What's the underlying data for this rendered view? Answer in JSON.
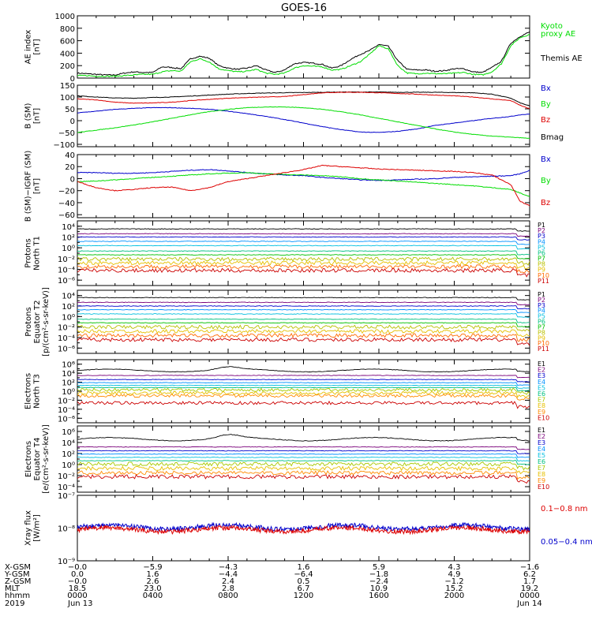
{
  "title": "GOES-16",
  "colors": {
    "black": "#000000",
    "green": "#00dd00",
    "blue": "#0000cc",
    "red": "#dd0000",
    "p": [
      "#000000",
      "#7a007a",
      "#0000cc",
      "#0090ff",
      "#00bfe0",
      "#00c080",
      "#00c000",
      "#b8c000",
      "#e6c000",
      "#ff6a00",
      "#cc0000"
    ],
    "e": [
      "#000000",
      "#7a007a",
      "#0000cc",
      "#0090ff",
      "#00bfe0",
      "#00c080",
      "#a8c800",
      "#e6c000",
      "#ff8c00",
      "#cc0000"
    ]
  },
  "chart_data": [
    {
      "type": "line",
      "id": "ae",
      "ylabel": [
        "AE index",
        "[nT]"
      ],
      "ylim": [
        0,
        1000
      ],
      "yticks": [
        "0",
        "200",
        "400",
        "600",
        "800",
        "1000"
      ],
      "ytick_values": [
        0,
        200,
        400,
        600,
        800,
        1000
      ],
      "legend": [
        {
          "name": "Kyoto",
          "color": "green"
        },
        {
          "name": "proxy AE",
          "color": "green"
        },
        {
          "name": "Themis AE",
          "color": "black"
        }
      ],
      "series": [
        {
          "name": "Themis AE",
          "color": "black",
          "x": [
            0,
            0.5,
            1,
            1.5,
            2,
            2.5,
            3,
            3.5,
            4,
            4.5,
            5,
            5.5,
            6,
            6.5,
            7,
            7.5,
            8,
            8.5,
            9,
            9.5,
            10,
            10.5,
            11,
            11.5,
            12,
            12.5,
            13,
            13.5,
            14,
            14.5,
            15,
            15.5,
            16,
            16.5,
            17,
            17.5,
            18,
            18.5,
            19,
            19.5,
            20,
            20.5,
            21,
            21.5,
            22,
            22.5,
            23,
            23.5,
            24
          ],
          "y": [
            80,
            70,
            60,
            50,
            50,
            80,
            100,
            90,
            90,
            180,
            170,
            150,
            310,
            350,
            320,
            200,
            160,
            140,
            160,
            200,
            130,
            90,
            130,
            230,
            250,
            240,
            220,
            160,
            200,
            300,
            380,
            440,
            540,
            510,
            280,
            140,
            130,
            130,
            110,
            120,
            150,
            150,
            100,
            90,
            170,
            270,
            560,
            670,
            740
          ]
        },
        {
          "name": "Kyoto proxy AE",
          "color": "green",
          "x": [
            0,
            0.5,
            1,
            1.5,
            2,
            2.5,
            3,
            3.5,
            4,
            4.5,
            5,
            5.5,
            6,
            6.5,
            7,
            7.5,
            8,
            8.5,
            9,
            9.5,
            10,
            10.5,
            11,
            11.5,
            12,
            12.5,
            13,
            13.5,
            14,
            14.5,
            15,
            15.5,
            16,
            16.5,
            17,
            17.5,
            18,
            18.5,
            19,
            19.5,
            20,
            20.5,
            21,
            21.5,
            22,
            22.5,
            23,
            23.5,
            24
          ],
          "y": [
            40,
            40,
            30,
            30,
            30,
            40,
            50,
            60,
            60,
            100,
            120,
            110,
            260,
            310,
            260,
            150,
            120,
            100,
            110,
            140,
            80,
            60,
            80,
            160,
            200,
            190,
            180,
            130,
            140,
            200,
            260,
            380,
            520,
            470,
            200,
            80,
            70,
            80,
            70,
            70,
            80,
            90,
            60,
            50,
            100,
            230,
            520,
            650,
            700
          ]
        }
      ]
    },
    {
      "type": "line",
      "id": "bsm",
      "ylabel": [
        "B (SM)",
        "[nT]"
      ],
      "ylim": [
        -110,
        150
      ],
      "yticks": [
        "−100",
        "−50",
        "0",
        "50",
        "100",
        "150"
      ],
      "ytick_values": [
        -100,
        -50,
        0,
        50,
        100,
        150
      ],
      "legend": [
        {
          "name": "Bx",
          "color": "blue"
        },
        {
          "name": "By",
          "color": "green"
        },
        {
          "name": "Bz",
          "color": "red"
        },
        {
          "name": "Bmag",
          "color": "black"
        }
      ],
      "series": [
        {
          "name": "Bmag",
          "color": "black",
          "x": [
            0,
            1,
            2,
            3,
            4,
            5,
            6,
            7,
            8,
            9,
            10,
            11,
            12,
            13,
            14,
            15,
            16,
            17,
            18,
            19,
            20,
            21,
            22,
            23,
            23.5,
            24
          ],
          "y": [
            105,
            100,
            96,
            95,
            98,
            100,
            104,
            108,
            112,
            115,
            117,
            118,
            119,
            120,
            121,
            121,
            121,
            120,
            120,
            120,
            119,
            118,
            112,
            95,
            75,
            62
          ]
        },
        {
          "name": "Bz",
          "color": "red",
          "x": [
            0,
            1,
            2,
            3,
            4,
            5,
            6,
            7,
            8,
            9,
            10,
            11,
            12,
            13,
            14,
            15,
            16,
            17,
            18,
            19,
            20,
            21,
            22,
            23,
            23.5,
            24
          ],
          "y": [
            92,
            88,
            78,
            74,
            75,
            78,
            85,
            90,
            95,
            98,
            100,
            102,
            110,
            118,
            120,
            120,
            118,
            115,
            112,
            108,
            105,
            100,
            92,
            85,
            65,
            50
          ]
        },
        {
          "name": "Bx",
          "color": "blue",
          "x": [
            0,
            1,
            2,
            3,
            4,
            5,
            6,
            7,
            8,
            9,
            10,
            11,
            12,
            13,
            14,
            15,
            16,
            17,
            18,
            19,
            20,
            21,
            22,
            23,
            23.5,
            24
          ],
          "y": [
            33,
            40,
            48,
            52,
            55,
            55,
            52,
            48,
            40,
            30,
            18,
            5,
            -10,
            -25,
            -38,
            -48,
            -50,
            -45,
            -35,
            -20,
            -10,
            0,
            10,
            18,
            25,
            28
          ]
        },
        {
          "name": "By",
          "color": "green",
          "x": [
            0,
            1,
            2,
            3,
            4,
            5,
            6,
            7,
            8,
            9,
            10,
            11,
            12,
            13,
            14,
            15,
            16,
            17,
            18,
            19,
            20,
            21,
            22,
            23,
            23.5,
            24
          ],
          "y": [
            -50,
            -40,
            -30,
            -18,
            -5,
            10,
            25,
            38,
            48,
            55,
            58,
            58,
            55,
            48,
            38,
            25,
            10,
            -5,
            -20,
            -35,
            -48,
            -58,
            -65,
            -70,
            -72,
            -75
          ]
        }
      ]
    },
    {
      "type": "line",
      "id": "bigrf",
      "ylabel": [
        "B (SM)−IGRF (SM)",
        "[nT]"
      ],
      "ylim": [
        -65,
        40
      ],
      "yticks": [
        "−60",
        "−40",
        "−20",
        "0",
        "20",
        "40"
      ],
      "ytick_values": [
        -60,
        -40,
        -20,
        0,
        20,
        40
      ],
      "legend": [
        {
          "name": "Bx",
          "color": "blue"
        },
        {
          "name": "By",
          "color": "green"
        },
        {
          "name": "Bz",
          "color": "red"
        }
      ],
      "series": [
        {
          "name": "Bx",
          "color": "blue",
          "x": [
            0,
            1,
            2,
            3,
            4,
            5,
            6,
            7,
            8,
            9,
            10,
            11,
            12,
            13,
            14,
            15,
            16,
            17,
            18,
            19,
            20,
            21,
            22,
            23,
            23.5,
            24
          ],
          "y": [
            10,
            10,
            9,
            9,
            10,
            12,
            14,
            15,
            13,
            10,
            8,
            6,
            5,
            2,
            0,
            -2,
            -3,
            -2,
            -1,
            0,
            2,
            3,
            4,
            5,
            8,
            14
          ]
        },
        {
          "name": "By",
          "color": "green",
          "x": [
            0,
            1,
            2,
            3,
            4,
            5,
            6,
            7,
            8,
            9,
            10,
            11,
            12,
            13,
            14,
            15,
            16,
            17,
            18,
            19,
            20,
            21,
            22,
            23,
            23.5,
            24
          ],
          "y": [
            -5,
            -4,
            -2,
            0,
            2,
            4,
            6,
            8,
            9,
            10,
            8,
            7,
            6,
            5,
            3,
            0,
            -2,
            -4,
            -6,
            -8,
            -10,
            -12,
            -15,
            -18,
            -24,
            -30
          ]
        },
        {
          "name": "Bz",
          "color": "red",
          "x": [
            0,
            1,
            2,
            3,
            4,
            5,
            6,
            7,
            8,
            9,
            10,
            11,
            12,
            13,
            14,
            15,
            16,
            17,
            18,
            19,
            20,
            21,
            22,
            23,
            23.5,
            24
          ],
          "y": [
            -5,
            -15,
            -20,
            -18,
            -15,
            -14,
            -20,
            -15,
            -5,
            0,
            5,
            10,
            15,
            22,
            20,
            18,
            16,
            15,
            14,
            13,
            12,
            10,
            6,
            -10,
            -38,
            -45
          ]
        }
      ]
    },
    {
      "type": "line",
      "id": "protons-t1",
      "log": true,
      "ylabel": [
        "Protons",
        "North T1"
      ],
      "ylim_exp": [
        -7,
        5
      ],
      "yticks": [
        "10⁻⁶",
        "10⁻⁴",
        "10⁻²",
        "10⁰",
        "10²",
        "10⁴"
      ],
      "ytick_exp": [
        -6,
        -4,
        -2,
        0,
        2,
        4
      ],
      "legend": [
        "P1",
        "P2",
        "P3",
        "P4",
        "P5",
        "P6",
        "P7",
        "P8",
        "P9",
        "P10",
        "P11"
      ],
      "levels_exp": [
        3.5,
        2.6,
        2.0,
        1.2,
        0.4,
        -0.6,
        -1.3,
        -2.1,
        -2.8,
        -3.5,
        -4.2
      ]
    },
    {
      "type": "line",
      "id": "protons-t2",
      "log": true,
      "ylabel": [
        "Protons",
        "Equator T2",
        "[p/(cm²-s-sr-keV)]"
      ],
      "ylim_exp": [
        -7,
        5
      ],
      "yticks": [
        "10⁻⁶",
        "10⁻⁴",
        "10⁻²",
        "10⁰",
        "10²",
        "10⁴"
      ],
      "ytick_exp": [
        -6,
        -4,
        -2,
        0,
        2,
        4
      ],
      "legend": [
        "P1",
        "P2",
        "P3",
        "P4",
        "P5",
        "P6",
        "P7",
        "P8",
        "P9",
        "P10",
        "P11"
      ],
      "levels_exp": [
        3.6,
        2.7,
        2.0,
        1.3,
        0.5,
        -0.5,
        -1.2,
        -2.0,
        -2.8,
        -3.6,
        -4.4
      ]
    },
    {
      "type": "line",
      "id": "electrons-t3",
      "log": true,
      "ylabel": [
        "Electrons",
        "North T3"
      ],
      "ylim_exp": [
        -7,
        7
      ],
      "yticks": [
        "10⁻⁶",
        "10⁻⁴",
        "10⁻²",
        "10⁰",
        "10²",
        "10⁴",
        "10⁶"
      ],
      "ytick_exp": [
        -6,
        -4,
        -2,
        0,
        2,
        4,
        6
      ],
      "legend": [
        "E1",
        "E2",
        "E3",
        "E4",
        "E5",
        "E6",
        "E7",
        "E8",
        "E9",
        "E10"
      ],
      "levels_exp": [
        4.6,
        3.5,
        2.6,
        1.9,
        1.3,
        0.8,
        0.3,
        -0.4,
        -1.0,
        -2.6
      ]
    },
    {
      "type": "line",
      "id": "electrons-t4",
      "log": true,
      "ylabel": [
        "Electrons",
        "Equator T4",
        "[e/(cm²-s-sr-keV)]"
      ],
      "ylim_exp": [
        -5,
        7
      ],
      "yticks": [
        "10⁻⁴",
        "10⁻²",
        "10⁰",
        "10²",
        "10⁴",
        "10⁶"
      ],
      "ytick_exp": [
        -4,
        -2,
        0,
        2,
        4,
        6
      ],
      "legend": [
        "E1",
        "E2",
        "E3",
        "E4",
        "E5",
        "E6",
        "E7",
        "E8",
        "E9",
        "E10"
      ],
      "levels_exp": [
        4.6,
        3.2,
        2.5,
        1.9,
        1.3,
        0.7,
        0.1,
        -0.7,
        -1.5,
        -2.2
      ]
    },
    {
      "type": "line",
      "id": "xray",
      "log": true,
      "ylabel": [
        "Xray flux",
        "[W/m²]"
      ],
      "ylim_exp": [
        -9,
        -7
      ],
      "yticks": [
        "10⁻⁹",
        "10⁻⁸",
        "10⁻⁷"
      ],
      "ytick_exp": [
        -9,
        -8,
        -7
      ],
      "legend": [
        {
          "name": "0.1−0.8 nm",
          "color": "red"
        },
        {
          "name": "0.05−0.4 nm",
          "color": "blue"
        }
      ],
      "series": [
        {
          "name": "0.1−0.8 nm",
          "color": "red",
          "level_exp": -8.05
        },
        {
          "name": "0.05−0.4 nm",
          "color": "blue",
          "level_exp": -7.97
        }
      ]
    }
  ],
  "xaxis": {
    "range": [
      0,
      24
    ],
    "tick_hours": [
      0,
      4,
      8,
      12,
      16,
      20,
      24
    ],
    "rows": [
      {
        "label": "X-GSM",
        "values": [
          "−0.0",
          "−5.9",
          "−4.3",
          "1.6",
          "5.9",
          "4.3",
          "−1.6"
        ]
      },
      {
        "label": "Y-GSM",
        "values": [
          "0.0",
          "1.6",
          "−4.4",
          "−6.4",
          "−1.8",
          "4.9",
          "6.2"
        ]
      },
      {
        "label": "Z-GSM",
        "values": [
          "−0.0",
          "2.6",
          "2.4",
          "0.5",
          "−2.4",
          "−1.2",
          "1.7"
        ]
      },
      {
        "label": "MLT",
        "values": [
          "18.5",
          "23.0",
          "2.8",
          "6.7",
          "10.9",
          "15.2",
          "19.2"
        ]
      },
      {
        "label": "hhmm",
        "values": [
          "0000",
          "0400",
          "0800",
          "1200",
          "1600",
          "2000",
          "0000"
        ]
      },
      {
        "label": "2019",
        "values": [
          "Jun 13",
          "",
          "",
          "",
          "",
          "",
          "Jun 14"
        ]
      }
    ]
  }
}
